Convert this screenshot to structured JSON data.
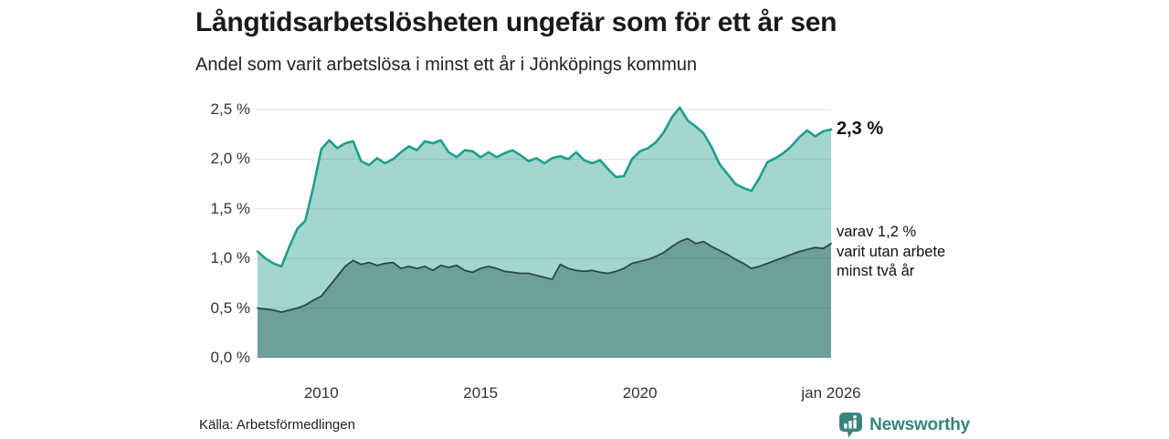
{
  "header": {
    "title": "Långtidsarbetslösheten ungefär som för ett år sen",
    "subtitle": "Andel som varit arbetslösa i minst ett år i Jönköpings kommun"
  },
  "annotations": {
    "total_end_label": "2,3 %",
    "sub_end_label_lines": [
      "varav 1,2 %",
      "varit utan arbete",
      "minst två år"
    ]
  },
  "footer": {
    "source": "Källa: Arbetsförmedlingen",
    "brand": "Newsworthy"
  },
  "colors": {
    "total_line": "#1d9e8c",
    "total_fill": "#a4d6cf",
    "two_year_line": "#2b4844",
    "two_year_fill": "#6f9f99",
    "grid": "rgba(0,0,0,0.10)",
    "brand_teal": "#37857c"
  },
  "chart_data": {
    "type": "area",
    "title": "Långtidsarbetslösheten ungefär som för ett år sen",
    "subtitle": "Andel som varit arbetslösa i minst ett år i Jönköpings kommun",
    "unit": "percent",
    "xlim": [
      2008,
      2026
    ],
    "ylim": [
      0,
      2.5
    ],
    "grid": true,
    "legend_position": "right-annotations",
    "x": [
      2008,
      2008.25,
      2008.5,
      2008.75,
      2009,
      2009.25,
      2009.5,
      2009.75,
      2010,
      2010.25,
      2010.5,
      2010.75,
      2011,
      2011.25,
      2011.5,
      2011.75,
      2012,
      2012.25,
      2012.5,
      2012.75,
      2013,
      2013.25,
      2013.5,
      2013.75,
      2014,
      2014.25,
      2014.5,
      2014.75,
      2015,
      2015.25,
      2015.5,
      2015.75,
      2016,
      2016.25,
      2016.5,
      2016.75,
      2017,
      2017.25,
      2017.5,
      2017.75,
      2018,
      2018.25,
      2018.5,
      2018.75,
      2019,
      2019.25,
      2019.5,
      2019.75,
      2020,
      2020.25,
      2020.5,
      2020.75,
      2021,
      2021.25,
      2021.5,
      2021.75,
      2022,
      2022.25,
      2022.5,
      2022.75,
      2023,
      2023.25,
      2023.5,
      2023.75,
      2024,
      2024.25,
      2024.5,
      2024.75,
      2025,
      2025.25,
      2025.5,
      2025.75,
      2026
    ],
    "series": [
      {
        "name": "Andel arbetslösa minst ett år",
        "end_value_label": "2,3 %",
        "values": [
          1.07,
          1.0,
          0.95,
          0.92,
          1.12,
          1.3,
          1.38,
          1.72,
          2.1,
          2.19,
          2.11,
          2.16,
          2.18,
          1.98,
          1.94,
          2.01,
          1.96,
          2.0,
          2.07,
          2.13,
          2.09,
          2.18,
          2.16,
          2.19,
          2.07,
          2.02,
          2.09,
          2.08,
          2.02,
          2.07,
          2.02,
          2.06,
          2.09,
          2.04,
          1.98,
          2.01,
          1.96,
          2.01,
          2.03,
          2.0,
          2.07,
          1.99,
          1.96,
          1.99,
          1.9,
          1.82,
          1.83,
          2.0,
          2.08,
          2.11,
          2.17,
          2.27,
          2.42,
          2.52,
          2.39,
          2.33,
          2.26,
          2.12,
          1.95,
          1.85,
          1.75,
          1.71,
          1.68,
          1.81,
          1.97,
          2.01,
          2.06,
          2.13,
          2.22,
          2.29,
          2.23,
          2.28,
          2.3
        ]
      },
      {
        "name": "varav utan arbete minst två år",
        "end_value_label": "1,2 %",
        "values": [
          0.5,
          0.49,
          0.48,
          0.46,
          0.48,
          0.5,
          0.53,
          0.58,
          0.62,
          0.72,
          0.82,
          0.92,
          0.98,
          0.94,
          0.96,
          0.93,
          0.95,
          0.96,
          0.9,
          0.92,
          0.9,
          0.92,
          0.88,
          0.93,
          0.91,
          0.93,
          0.88,
          0.86,
          0.9,
          0.92,
          0.9,
          0.87,
          0.86,
          0.85,
          0.85,
          0.83,
          0.81,
          0.79,
          0.94,
          0.9,
          0.88,
          0.87,
          0.88,
          0.86,
          0.85,
          0.87,
          0.9,
          0.95,
          0.97,
          0.99,
          1.02,
          1.06,
          1.12,
          1.17,
          1.2,
          1.15,
          1.17,
          1.12,
          1.08,
          1.04,
          0.99,
          0.95,
          0.9,
          0.92,
          0.95,
          0.98,
          1.01,
          1.04,
          1.07,
          1.09,
          1.11,
          1.1,
          1.15
        ]
      }
    ],
    "yticks": [
      {
        "v": 0.0,
        "label": "0,0 %"
      },
      {
        "v": 0.5,
        "label": "0,5 %"
      },
      {
        "v": 1.0,
        "label": "1,0 %"
      },
      {
        "v": 1.5,
        "label": "1,5 %"
      },
      {
        "v": 2.0,
        "label": "2,0 %"
      },
      {
        "v": 2.5,
        "label": "2,5 %"
      }
    ],
    "xticks": [
      {
        "t": 2010,
        "label": "2010"
      },
      {
        "t": 2015,
        "label": "2015"
      },
      {
        "t": 2020,
        "label": "2020"
      },
      {
        "t": 2026,
        "label": "jan 2026"
      }
    ],
    "source": "Källa: Arbetsförmedlingen"
  }
}
